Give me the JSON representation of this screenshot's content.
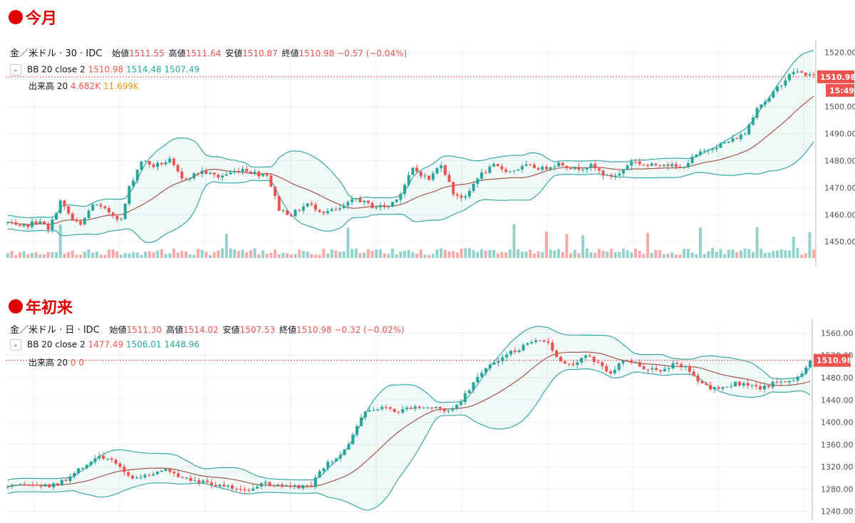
{
  "headings": {
    "top": "今月",
    "bottom": "年初来"
  },
  "colors": {
    "up": "#26a69a",
    "down": "#ef5350",
    "band": "#3aa7a7",
    "basis": "#a1584b",
    "price_line": "#ef5350",
    "heading": "#e00000"
  },
  "chart_data": [
    {
      "type": "candlestick",
      "symbol": "金／米ドル",
      "interval": "30",
      "source": "IDC",
      "ohlc": {
        "open_label": "始値",
        "open": "1511.55",
        "high_label": "高値",
        "high": "1511.64",
        "low_label": "安値",
        "low": "1510.87",
        "close_label": "終値",
        "close": "1510.98",
        "change": "−0.57 (−0.04%)"
      },
      "bb_legend": {
        "name": "BB 20 close 2",
        "basis": "1510.98",
        "upper": "1514.48",
        "lower": "1507.49"
      },
      "volume_legend": {
        "name": "出来高 20",
        "volume": "4.682K",
        "ma": "11.699K"
      },
      "ylim": [
        1444,
        1522
      ],
      "yticks": [
        "1520.00",
        "1510.00",
        "1500.00",
        "1490.00",
        "1480.00",
        "1470.00",
        "1460.00",
        "1450.00"
      ],
      "last_price": "1510.98",
      "countdown": "15:49",
      "anchors": [
        [
          0,
          1457
        ],
        [
          3,
          1455
        ],
        [
          8,
          1458
        ],
        [
          10,
          1454
        ],
        [
          13,
          1465
        ],
        [
          16,
          1458
        ],
        [
          18,
          1456
        ],
        [
          21,
          1464
        ],
        [
          25,
          1461
        ],
        [
          28,
          1458
        ],
        [
          30,
          1470
        ],
        [
          33,
          1480
        ],
        [
          36,
          1478
        ],
        [
          40,
          1480
        ],
        [
          43,
          1473
        ],
        [
          48,
          1476
        ],
        [
          52,
          1474
        ],
        [
          58,
          1477
        ],
        [
          62,
          1475
        ],
        [
          64,
          1475
        ],
        [
          67,
          1462
        ],
        [
          70,
          1460
        ],
        [
          74,
          1464
        ],
        [
          78,
          1461
        ],
        [
          82,
          1462
        ],
        [
          86,
          1466
        ],
        [
          90,
          1463
        ],
        [
          94,
          1463
        ],
        [
          97,
          1468
        ],
        [
          100,
          1477
        ],
        [
          104,
          1473
        ],
        [
          107,
          1479
        ],
        [
          110,
          1468
        ],
        [
          113,
          1466
        ],
        [
          116,
          1474
        ],
        [
          120,
          1478
        ],
        [
          124,
          1476
        ],
        [
          128,
          1478
        ],
        [
          132,
          1477
        ],
        [
          136,
          1479
        ],
        [
          140,
          1477
        ],
        [
          144,
          1478
        ],
        [
          148,
          1474
        ],
        [
          151,
          1475
        ],
        [
          154,
          1480
        ],
        [
          158,
          1478
        ],
        [
          162,
          1479
        ],
        [
          166,
          1477
        ],
        [
          170,
          1482
        ],
        [
          174,
          1485
        ],
        [
          178,
          1487
        ],
        [
          182,
          1490
        ],
        [
          185,
          1500
        ],
        [
          188,
          1503
        ],
        [
          190,
          1507
        ],
        [
          194,
          1513
        ],
        [
          197,
          1512
        ],
        [
          199,
          1511
        ]
      ],
      "volume": "low baseline with spikes"
    },
    {
      "type": "candlestick",
      "symbol": "金／米ドル",
      "interval": "日",
      "source": "IDC",
      "ohlc": {
        "open_label": "始値",
        "open": "1511.30",
        "high_label": "高値",
        "high": "1514.02",
        "low_label": "安値",
        "low": "1507.53",
        "close_label": "終値",
        "close": "1510.98",
        "change": "−0.32 (−0.02%)"
      },
      "bb_legend": {
        "name": "BB 20 close 2",
        "basis": "1477.49",
        "upper": "1506.01",
        "lower": "1448.96"
      },
      "volume_legend": {
        "name": "出来高 20",
        "volume": "0",
        "ma": "0"
      },
      "ylim": [
        1232,
        1572
      ],
      "yticks": [
        "1560.00",
        "1520.00",
        "1480.00",
        "1440.00",
        "1400.00",
        "1360.00",
        "1320.00",
        "1280.00",
        "1240.00"
      ],
      "last_price": "1510.98",
      "anchors": [
        [
          0,
          1283
        ],
        [
          5,
          1287
        ],
        [
          10,
          1285
        ],
        [
          14,
          1295
        ],
        [
          18,
          1320
        ],
        [
          22,
          1340
        ],
        [
          26,
          1325
        ],
        [
          30,
          1300
        ],
        [
          34,
          1305
        ],
        [
          38,
          1315
        ],
        [
          42,
          1302
        ],
        [
          46,
          1295
        ],
        [
          50,
          1288
        ],
        [
          54,
          1282
        ],
        [
          58,
          1280
        ],
        [
          62,
          1290
        ],
        [
          66,
          1285
        ],
        [
          70,
          1283
        ],
        [
          73,
          1285
        ],
        [
          76,
          1320
        ],
        [
          80,
          1340
        ],
        [
          83,
          1375
        ],
        [
          86,
          1420
        ],
        [
          90,
          1430
        ],
        [
          94,
          1420
        ],
        [
          98,
          1430
        ],
        [
          102,
          1425
        ],
        [
          106,
          1420
        ],
        [
          109,
          1440
        ],
        [
          112,
          1470
        ],
        [
          115,
          1500
        ],
        [
          118,
          1510
        ],
        [
          121,
          1525
        ],
        [
          124,
          1535
        ],
        [
          127,
          1545
        ],
        [
          130,
          1540
        ],
        [
          133,
          1510
        ],
        [
          136,
          1505
        ],
        [
          139,
          1520
        ],
        [
          142,
          1505
        ],
        [
          145,
          1490
        ],
        [
          148,
          1510
        ],
        [
          151,
          1505
        ],
        [
          154,
          1495
        ],
        [
          157,
          1490
        ],
        [
          160,
          1505
        ],
        [
          163,
          1500
        ],
        [
          166,
          1475
        ],
        [
          169,
          1460
        ],
        [
          172,
          1465
        ],
        [
          175,
          1470
        ],
        [
          178,
          1465
        ],
        [
          181,
          1460
        ],
        [
          184,
          1470
        ],
        [
          187,
          1475
        ],
        [
          190,
          1480
        ],
        [
          193,
          1511
        ]
      ]
    }
  ]
}
